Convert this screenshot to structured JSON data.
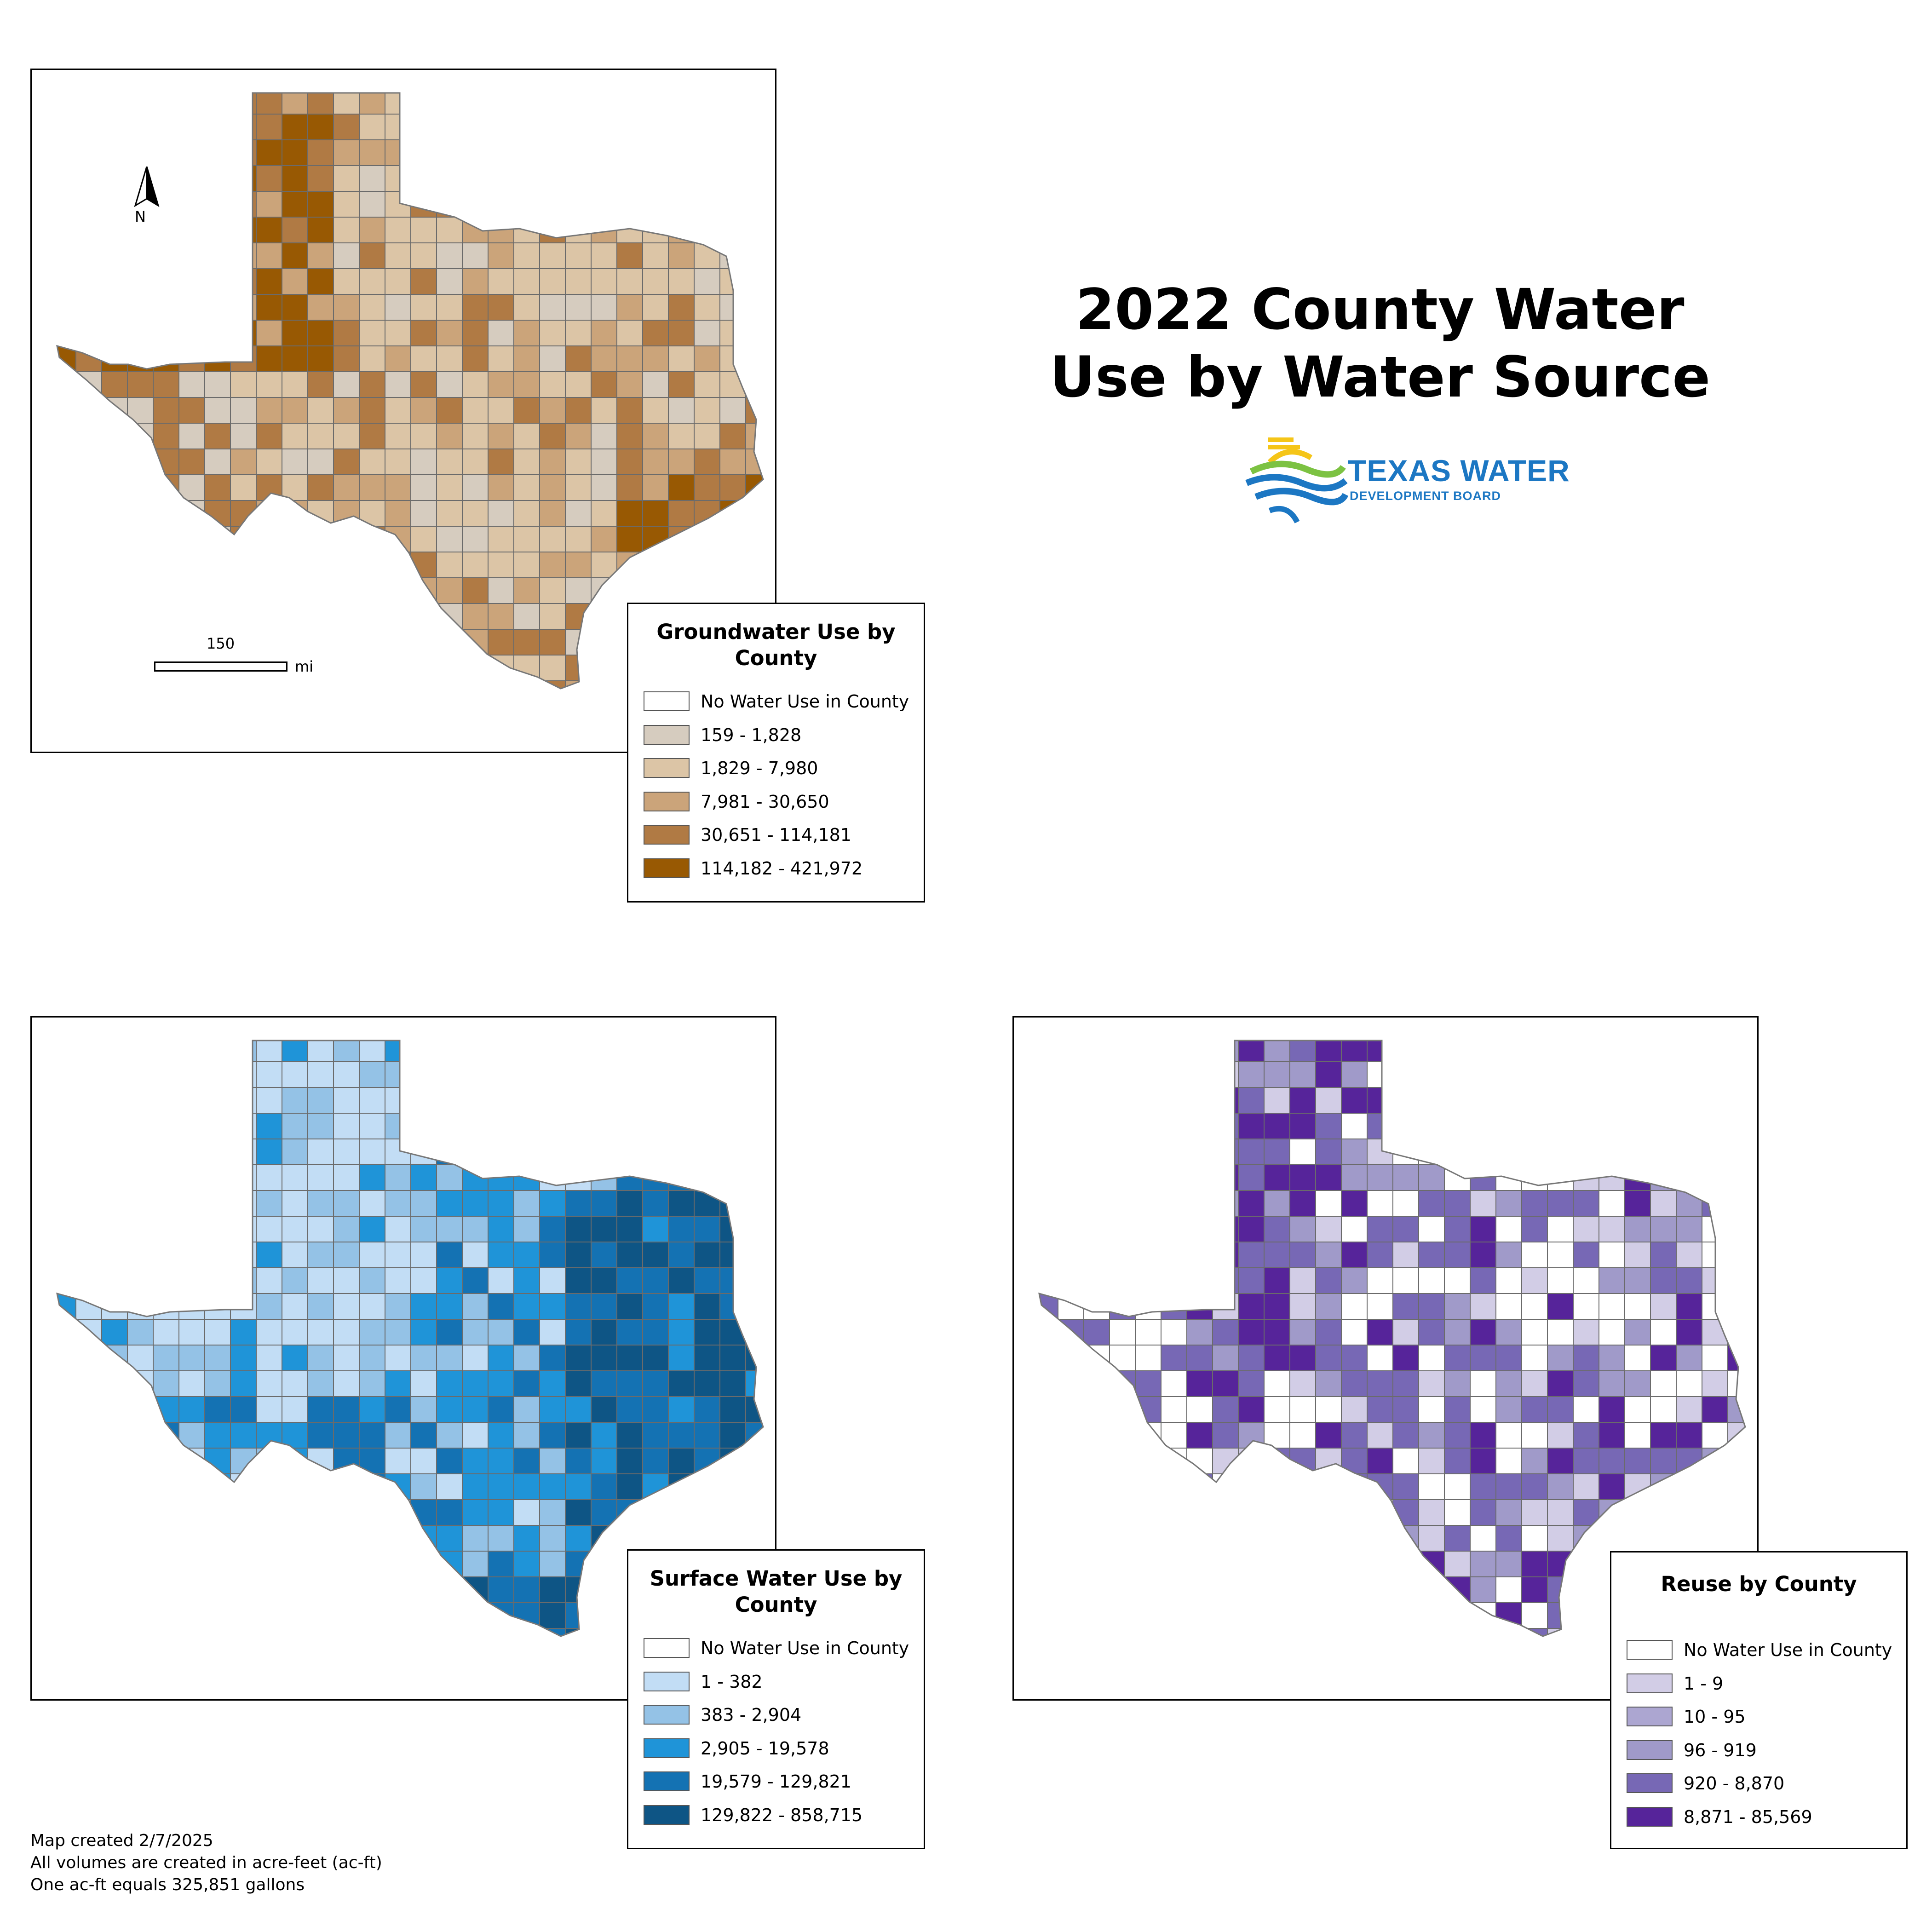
{
  "title": "2022 County Water Use by Water Source",
  "logo": {
    "line1": "TEXAS WATER",
    "line2": "DEVELOPMENT BOARD"
  },
  "north_arrow": {
    "label": "N"
  },
  "scale_bar": {
    "value": "150",
    "unit": "mi"
  },
  "maps": [
    {
      "id": "groundwater",
      "legend_title": "Groundwater Use by County",
      "classes": [
        {
          "label": "No Water Use in County",
          "color": "#ffffff"
        },
        {
          "label": "159 - 1,828",
          "color": "#d6ccbf"
        },
        {
          "label": "1,829 - 7,980",
          "color": "#dcc5a6"
        },
        {
          "label": "7,981 - 30,650",
          "color": "#cba47a"
        },
        {
          "label": "30,651 - 114,181",
          "color": "#b07a44"
        },
        {
          "label": "114,182 - 421,972",
          "color": "#985903"
        }
      ]
    },
    {
      "id": "surface",
      "legend_title": "Surface Water Use by County",
      "classes": [
        {
          "label": "No Water Use in County",
          "color": "#ffffff"
        },
        {
          "label": "1 - 382",
          "color": "#c2ddf5"
        },
        {
          "label": "383 - 2,904",
          "color": "#94c2e6"
        },
        {
          "label": "2,905 - 19,578",
          "color": "#1f94d8"
        },
        {
          "label": "19,579 - 129,821",
          "color": "#1472b3"
        },
        {
          "label": "129,822 - 858,715",
          "color": "#0e5585"
        }
      ]
    },
    {
      "id": "reuse",
      "legend_title": "Reuse by County",
      "classes": [
        {
          "label": "No Water Use in County",
          "color": "#ffffff"
        },
        {
          "label": "1 - 9",
          "color": "#d2cde6"
        },
        {
          "label": "10 - 95",
          "color": "#aca6d1"
        },
        {
          "label": "96 - 919",
          "color": "#a09ac9"
        },
        {
          "label": "920 - 8,870",
          "color": "#7768b5"
        },
        {
          "label": "8,871 - 85,569",
          "color": "#56249a"
        }
      ]
    }
  ],
  "footnotes": [
    "Map created 2/7/2025",
    "All volumes are created in acre-feet (ac-ft)",
    "One ac-ft equals 325,851 gallons"
  ]
}
